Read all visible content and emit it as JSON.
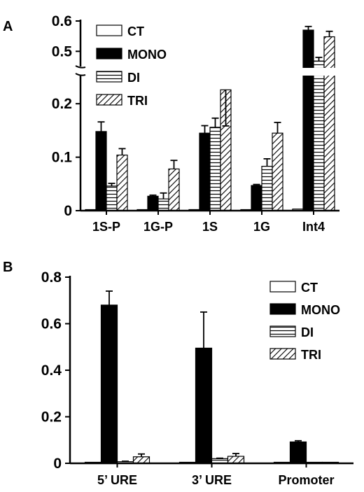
{
  "chart_data": [
    {
      "panel": "A",
      "type": "bar",
      "categories": [
        "1S-P",
        "1G-P",
        "1S",
        "1G",
        "Int4"
      ],
      "series": [
        {
          "name": "CT",
          "values": [
            0.001,
            0.0,
            0.002,
            0.0,
            0.003
          ],
          "errors": [
            0,
            0,
            0,
            0,
            0
          ]
        },
        {
          "name": "MONO",
          "values": [
            0.148,
            0.027,
            0.145,
            0.047,
            0.57
          ],
          "errors": [
            0.018,
            0.002,
            0.014,
            0.002,
            0.012
          ]
        },
        {
          "name": "DI",
          "values": [
            0.046,
            0.022,
            0.156,
            0.083,
            0.468
          ],
          "errors": [
            0.005,
            0.011,
            0.017,
            0.014,
            0.012
          ]
        },
        {
          "name": "TRI",
          "values": [
            0.104,
            0.078,
            0.226,
            0.145,
            0.548
          ],
          "errors": [
            0.012,
            0.016,
            0.028,
            0.02,
            0.018
          ]
        }
      ],
      "yticks_lower": [
        "0",
        "0.1",
        "0.2"
      ],
      "yticks_upper": [
        "0.5",
        "0.6"
      ],
      "ylim_lower": [
        0,
        0.25
      ],
      "ylim_upper": [
        0.45,
        0.6
      ],
      "axis_break": true,
      "legend_position": "top-left"
    },
    {
      "panel": "B",
      "type": "bar",
      "categories": [
        "5’ URE",
        "3’ URE",
        "Promoter"
      ],
      "series": [
        {
          "name": "CT",
          "values": [
            0.003,
            0.003,
            0.0
          ],
          "errors": [
            0,
            0,
            0
          ]
        },
        {
          "name": "MONO",
          "values": [
            0.68,
            0.495,
            0.092
          ],
          "errors": [
            0.06,
            0.155,
            0.005
          ]
        },
        {
          "name": "DI",
          "values": [
            0.007,
            0.02,
            0.003
          ],
          "errors": [
            0.002,
            0.002,
            0
          ]
        },
        {
          "name": "TRI",
          "values": [
            0.028,
            0.03,
            0.003
          ],
          "errors": [
            0.012,
            0.012,
            0
          ]
        }
      ],
      "yticks": [
        "0",
        "0.2",
        "0.4",
        "0.6",
        "0.8"
      ],
      "ylim": [
        0,
        0.8
      ],
      "legend_position": "top-right"
    }
  ]
}
